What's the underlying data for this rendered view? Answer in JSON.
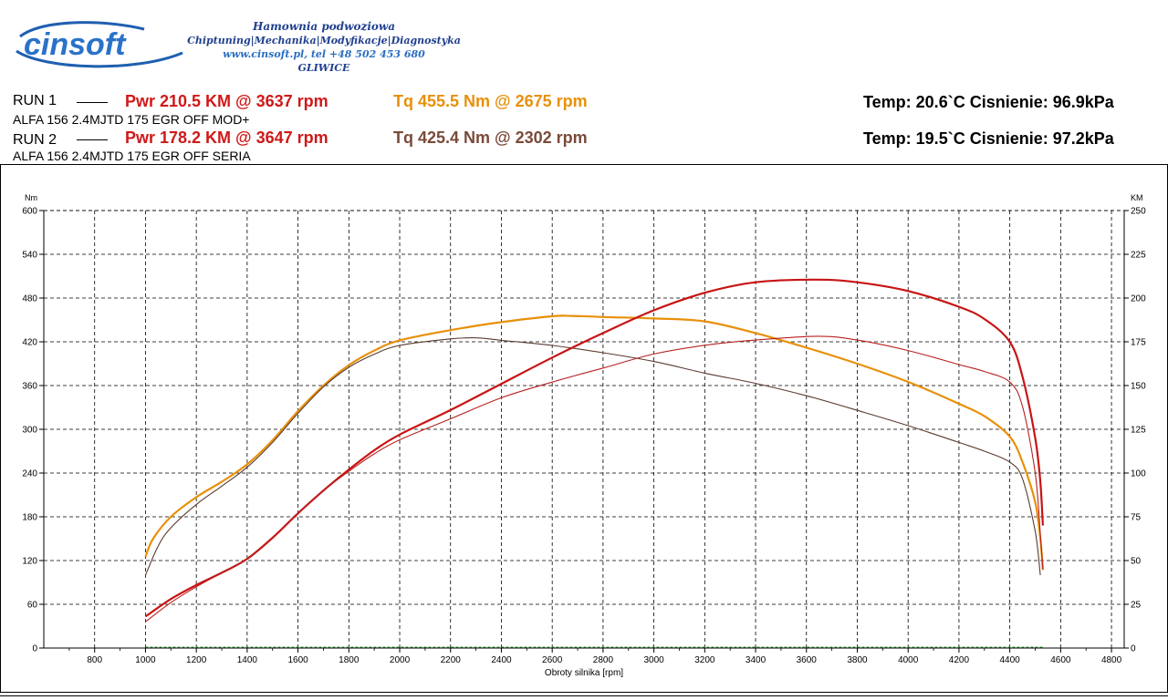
{
  "header": {
    "logo_text": "cinsoft",
    "company_line1": "Hamownia podwoziowa",
    "company_line2": "Chiptuning|Mechanika|Modyfikacje|Diagnostyka",
    "company_line3": "www.cinsoft.pl, tel +48 502 453 680",
    "company_line4": "GLIWICE"
  },
  "runs": [
    {
      "label": "RUN 1",
      "pwr_text": "Pwr  210.5 KM @ 3637 rpm",
      "tq_text": "Tq 455.5 Nm @ 2675 rpm",
      "car": "ALFA 156 2.4MJTD 175 EGR OFF MOD+",
      "conditions": "Temp: 20.6`C   Cisnienie: 96.9kPa",
      "pwr_color": "#d01818",
      "tq_color": "#e8900a"
    },
    {
      "label": "RUN 2",
      "pwr_text": "Pwr  178.2 KM @ 3647 rpm",
      "tq_text": "Tq 425.4 Nm @ 2302 rpm",
      "car": "ALFA 156 2.4MJTD 175 EGR OFF SERIA",
      "conditions": "Temp: 19.5`C   Cisnienie: 97.2kPa",
      "pwr_color": "#d01818",
      "tq_color": "#7a4a3a"
    }
  ],
  "chart_data": {
    "type": "line",
    "xlabel": "Obroty silnika [rpm]",
    "ylabel_left": "Nm",
    "ylabel_right": "KM",
    "xlim": [
      600,
      4850
    ],
    "x_ticks": [
      800,
      1000,
      1200,
      1400,
      1600,
      1800,
      2000,
      2200,
      2400,
      2600,
      2800,
      3000,
      3200,
      3400,
      3600,
      3800,
      4000,
      4200,
      4400,
      4600,
      4800
    ],
    "ylim_left": [
      0,
      600
    ],
    "y_ticks_left": [
      0,
      60,
      120,
      180,
      240,
      300,
      360,
      420,
      480,
      540,
      600
    ],
    "ylim_right": [
      0,
      250
    ],
    "y_ticks_right": [
      0,
      25,
      50,
      75,
      100,
      125,
      150,
      175,
      200,
      225,
      250
    ],
    "grid": true,
    "series": [
      {
        "name": "RUN 1 Tq",
        "axis": "left",
        "color": "#e8900a",
        "width": 2.2,
        "points": [
          [
            1000,
            125
          ],
          [
            1030,
            150
          ],
          [
            1100,
            180
          ],
          [
            1200,
            207
          ],
          [
            1300,
            228
          ],
          [
            1400,
            252
          ],
          [
            1500,
            285
          ],
          [
            1600,
            325
          ],
          [
            1700,
            360
          ],
          [
            1800,
            388
          ],
          [
            1900,
            408
          ],
          [
            2000,
            422
          ],
          [
            2200,
            436
          ],
          [
            2400,
            447
          ],
          [
            2600,
            455
          ],
          [
            2675,
            455.5
          ],
          [
            2800,
            454
          ],
          [
            3000,
            452
          ],
          [
            3200,
            448
          ],
          [
            3400,
            432
          ],
          [
            3600,
            412
          ],
          [
            3800,
            390
          ],
          [
            4000,
            365
          ],
          [
            4200,
            335
          ],
          [
            4300,
            318
          ],
          [
            4400,
            290
          ],
          [
            4450,
            255
          ],
          [
            4500,
            200
          ],
          [
            4520,
            150
          ],
          [
            4530,
            107
          ]
        ]
      },
      {
        "name": "RUN 2 Tq",
        "axis": "left",
        "color": "#5a3c30",
        "width": 1.1,
        "points": [
          [
            1000,
            100
          ],
          [
            1050,
            140
          ],
          [
            1100,
            165
          ],
          [
            1200,
            197
          ],
          [
            1300,
            222
          ],
          [
            1400,
            248
          ],
          [
            1500,
            282
          ],
          [
            1600,
            322
          ],
          [
            1700,
            358
          ],
          [
            1800,
            385
          ],
          [
            1900,
            403
          ],
          [
            2000,
            415
          ],
          [
            2200,
            424
          ],
          [
            2302,
            425.4
          ],
          [
            2400,
            422
          ],
          [
            2600,
            415
          ],
          [
            2800,
            405
          ],
          [
            3000,
            393
          ],
          [
            3200,
            377
          ],
          [
            3400,
            363
          ],
          [
            3600,
            346
          ],
          [
            3800,
            326
          ],
          [
            4000,
            305
          ],
          [
            4200,
            282
          ],
          [
            4300,
            270
          ],
          [
            4400,
            255
          ],
          [
            4450,
            232
          ],
          [
            4500,
            160
          ],
          [
            4520,
            100
          ]
        ]
      },
      {
        "name": "RUN 1 Pwr",
        "axis": "right",
        "color": "#c81414",
        "width": 2.2,
        "points": [
          [
            1000,
            18
          ],
          [
            1100,
            28
          ],
          [
            1200,
            36
          ],
          [
            1300,
            43
          ],
          [
            1400,
            51
          ],
          [
            1500,
            63
          ],
          [
            1600,
            77
          ],
          [
            1700,
            90
          ],
          [
            1800,
            102
          ],
          [
            1900,
            113
          ],
          [
            2000,
            122
          ],
          [
            2200,
            136
          ],
          [
            2400,
            151
          ],
          [
            2600,
            166
          ],
          [
            2800,
            180
          ],
          [
            3000,
            193
          ],
          [
            3200,
            203
          ],
          [
            3400,
            209
          ],
          [
            3637,
            210.5
          ],
          [
            3800,
            209
          ],
          [
            4000,
            204
          ],
          [
            4200,
            195
          ],
          [
            4300,
            188
          ],
          [
            4400,
            175
          ],
          [
            4450,
            155
          ],
          [
            4500,
            120
          ],
          [
            4520,
            95
          ],
          [
            4530,
            70
          ]
        ]
      },
      {
        "name": "RUN 2 Pwr",
        "axis": "right",
        "color": "#b82020",
        "width": 1.1,
        "points": [
          [
            1000,
            15
          ],
          [
            1100,
            26
          ],
          [
            1200,
            35
          ],
          [
            1300,
            43
          ],
          [
            1400,
            51
          ],
          [
            1500,
            63
          ],
          [
            1600,
            77
          ],
          [
            1700,
            90
          ],
          [
            1800,
            101
          ],
          [
            1900,
            111
          ],
          [
            2000,
            119
          ],
          [
            2200,
            131
          ],
          [
            2400,
            143
          ],
          [
            2600,
            152
          ],
          [
            2800,
            160
          ],
          [
            3000,
            168
          ],
          [
            3200,
            173
          ],
          [
            3400,
            176
          ],
          [
            3647,
            178.2
          ],
          [
            3800,
            176
          ],
          [
            4000,
            170
          ],
          [
            4200,
            162
          ],
          [
            4300,
            158
          ],
          [
            4400,
            152
          ],
          [
            4450,
            138
          ],
          [
            4500,
            100
          ],
          [
            4520,
            65
          ],
          [
            4530,
            45
          ]
        ]
      }
    ]
  }
}
